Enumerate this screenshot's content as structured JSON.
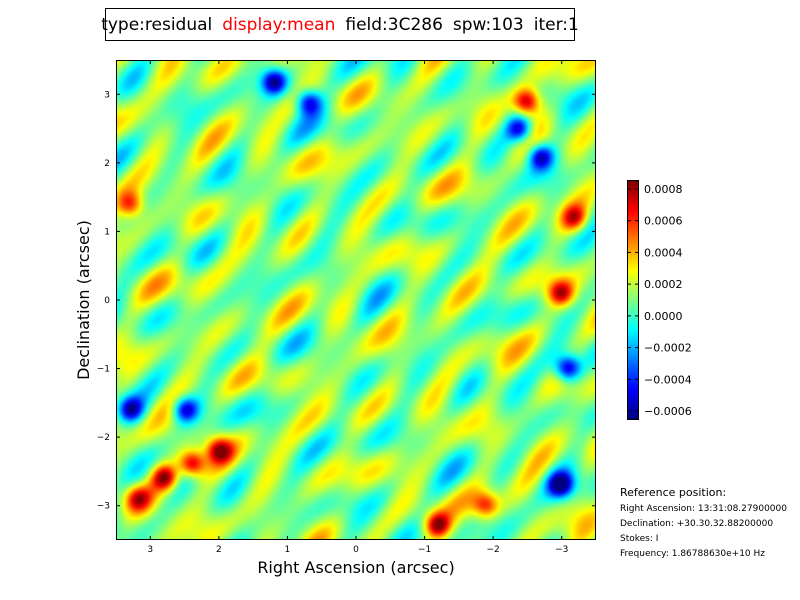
{
  "title": {
    "type": "type:residual",
    "display": "display:mean",
    "field": "field:3C286",
    "spw": "spw:103",
    "iter": "iter:1"
  },
  "colors": {
    "display_highlight": "#ff0000",
    "frame": "#000000"
  },
  "chart_data": {
    "type": "heatmap",
    "xlabel": "Right Ascension (arcsec)",
    "ylabel": "Declination (arcsec)",
    "xlim": [
      3.5,
      -3.5
    ],
    "ylim": [
      -3.5,
      3.5
    ],
    "xticks": [
      3,
      2,
      1,
      0,
      -1,
      -2,
      -3
    ],
    "xtick_labels": [
      "3",
      "2",
      "1",
      "0",
      "−1",
      "−2",
      "−3"
    ],
    "yticks": [
      3,
      2,
      1,
      0,
      -1,
      -2,
      -3
    ],
    "ytick_labels": [
      "3",
      "2",
      "1",
      "0",
      "−1",
      "−2",
      "−3"
    ],
    "colormap": "jet",
    "vmin": -0.00065,
    "vmax": 0.00085,
    "colorbar_ticks": [
      0.0008,
      0.0006,
      0.0004,
      0.0002,
      0.0,
      -0.0002,
      -0.0004,
      -0.0006
    ],
    "colorbar_tick_labels": [
      "0.0008",
      "0.0006",
      "0.0004",
      "0.0002",
      "0.0000",
      "−0.0002",
      "−0.0004",
      "−0.0006"
    ],
    "hotspots": [
      {
        "ra": 2.8,
        "dec": -2.6,
        "value": 0.0008
      },
      {
        "ra": 2.4,
        "dec": -2.4,
        "value": 0.0008
      },
      {
        "ra": -2.5,
        "dec": 2.9,
        "value": 0.0008
      },
      {
        "ra": -1.2,
        "dec": -3.3,
        "value": 0.0008
      },
      {
        "ra": -3.0,
        "dec": 0.1,
        "value": 0.0007
      },
      {
        "ra": -1.9,
        "dec": -3.0,
        "value": 0.0006
      },
      {
        "ra": 3.3,
        "dec": 1.4,
        "value": 0.0006
      },
      {
        "ra": -3.2,
        "dec": 1.2,
        "value": 0.0006
      },
      {
        "ra": 2.0,
        "dec": -2.2,
        "value": 0.0007
      },
      {
        "ra": 3.2,
        "dec": -2.9,
        "value": 0.0006
      }
    ],
    "coldspots": [
      {
        "ra": -3.1,
        "dec": -1.0,
        "value": -0.0006
      },
      {
        "ra": -3.0,
        "dec": -2.7,
        "value": -0.0006
      },
      {
        "ra": 1.2,
        "dec": 3.2,
        "value": -0.0006
      },
      {
        "ra": -2.7,
        "dec": 2.1,
        "value": -0.0005
      },
      {
        "ra": 2.5,
        "dec": -1.6,
        "value": -0.0005
      },
      {
        "ra": 0.7,
        "dec": 2.9,
        "value": -0.0005
      },
      {
        "ra": -2.4,
        "dec": 2.5,
        "value": -0.0005
      },
      {
        "ra": 3.3,
        "dec": -1.6,
        "value": -0.0005
      }
    ]
  },
  "reference": {
    "title": "Reference position:",
    "ra": "Right Ascension: 13:31:08.27900000",
    "dec": "Declination: +30.30.32.88200000",
    "stokes": "Stokes: I",
    "frequency": "Frequency: 1.86788630e+10 Hz"
  }
}
